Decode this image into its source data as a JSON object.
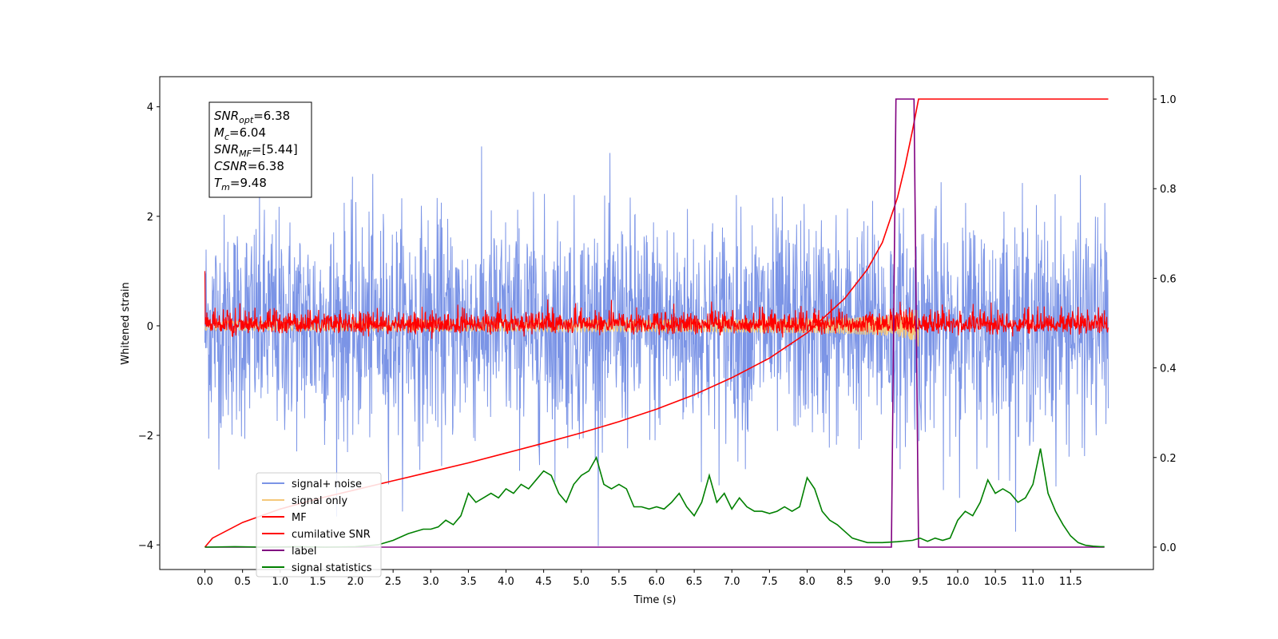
{
  "chart_data": {
    "type": "line",
    "title": "",
    "xlabel": "Time (s)",
    "ylabel": "Whitened strain",
    "y2label": "",
    "xlim": [
      -0.6,
      12.6
    ],
    "ylim": [
      -4.45,
      4.55
    ],
    "y2lim": [
      -0.05,
      1.05
    ],
    "x_ticks": [
      0.0,
      0.5,
      1.0,
      1.5,
      2.0,
      2.5,
      3.0,
      3.5,
      4.0,
      4.5,
      5.0,
      5.5,
      6.0,
      6.5,
      7.0,
      7.5,
      8.0,
      8.5,
      9.0,
      9.5,
      10.0,
      10.5,
      11.0,
      11.5
    ],
    "x_tick_labels": [
      "0.0",
      "0.5",
      "1.0",
      "1.5",
      "2.0",
      "2.5",
      "3.0",
      "3.5",
      "4.0",
      "4.5",
      "5.0",
      "5.5",
      "6.0",
      "6.5",
      "7.0",
      "7.5",
      "8.0",
      "8.5",
      "9.0",
      "9.5",
      "10.0",
      "10.5",
      "11.0",
      "11.5"
    ],
    "y_ticks": [
      -4,
      -2,
      0,
      2,
      4
    ],
    "y_tick_labels": [
      "−4",
      "−2",
      "0",
      "2",
      "4"
    ],
    "y2_ticks": [
      0.0,
      0.2,
      0.4,
      0.6,
      0.8,
      1.0
    ],
    "y2_tick_labels": [
      "0.0",
      "0.2",
      "0.4",
      "0.6",
      "0.8",
      "1.0"
    ],
    "grid": false,
    "legend_position": "lower-left",
    "annotation_box": [
      {
        "name": "SNR",
        "sub": "opt",
        "value": "=6.38"
      },
      {
        "name": "M",
        "sub": "c",
        "value": "=6.04"
      },
      {
        "name": "SNR",
        "sub": "MF",
        "value": "=[5.44]"
      },
      {
        "name": "CSNR",
        "sub": "",
        "value": "=6.38"
      },
      {
        "name": "T",
        "sub": "m",
        "value": "=9.48"
      }
    ],
    "series": [
      {
        "name": "signal+ noise",
        "color": "#7b94e6",
        "axis": "left",
        "kind": "noise",
        "x_range": [
          0.0,
          12.0
        ],
        "mean": 0.0,
        "std": 1.0,
        "min": -4.05,
        "max": 4.1
      },
      {
        "name": "signal only",
        "color": "#f5c87a",
        "axis": "left",
        "kind": "chirp",
        "x_range": [
          0.0,
          9.5
        ],
        "peak_time": 9.48,
        "peak_amplitude": 0.4
      },
      {
        "name": "MF",
        "color": "#ff0000",
        "axis": "left",
        "kind": "noise",
        "x_range": [
          0.0,
          12.0
        ],
        "mean": 0.0,
        "std": 0.17,
        "min": -0.25,
        "max": 1.0
      },
      {
        "name": "cumilative SNR",
        "color": "#ff0000",
        "axis": "right",
        "kind": "curve",
        "x": [
          0.0,
          0.1,
          0.5,
          1.0,
          1.5,
          2.0,
          2.5,
          3.0,
          3.5,
          4.0,
          4.5,
          5.0,
          5.5,
          6.0,
          6.5,
          7.0,
          7.5,
          8.0,
          8.5,
          8.8,
          9.0,
          9.2,
          9.3,
          9.4,
          9.48,
          12.0
        ],
        "y": [
          0.0,
          0.02,
          0.055,
          0.085,
          0.108,
          0.128,
          0.148,
          0.168,
          0.188,
          0.21,
          0.232,
          0.255,
          0.28,
          0.308,
          0.34,
          0.378,
          0.422,
          0.478,
          0.555,
          0.62,
          0.68,
          0.78,
          0.85,
          0.93,
          1.0,
          1.0
        ]
      },
      {
        "name": "label",
        "color": "#800080",
        "axis": "right",
        "kind": "step",
        "x": [
          0.0,
          9.12,
          9.18,
          9.42,
          9.48,
          11.95
        ],
        "y": [
          0.0,
          0.0,
          1.0,
          1.0,
          0.0,
          0.0
        ]
      },
      {
        "name": "signal statistics",
        "color": "#008000",
        "axis": "right",
        "kind": "curve",
        "x": [
          0.0,
          0.4,
          0.8,
          1.2,
          1.6,
          2.0,
          2.3,
          2.5,
          2.7,
          2.9,
          3.0,
          3.1,
          3.2,
          3.3,
          3.4,
          3.5,
          3.6,
          3.7,
          3.8,
          3.9,
          4.0,
          4.1,
          4.2,
          4.3,
          4.4,
          4.5,
          4.6,
          4.7,
          4.8,
          4.9,
          5.0,
          5.1,
          5.2,
          5.3,
          5.4,
          5.5,
          5.6,
          5.7,
          5.8,
          5.9,
          6.0,
          6.1,
          6.2,
          6.3,
          6.4,
          6.5,
          6.6,
          6.7,
          6.8,
          6.9,
          7.0,
          7.1,
          7.2,
          7.3,
          7.4,
          7.5,
          7.6,
          7.7,
          7.8,
          7.9,
          8.0,
          8.1,
          8.2,
          8.3,
          8.4,
          8.5,
          8.6,
          8.7,
          8.8,
          9.0,
          9.2,
          9.4,
          9.5,
          9.6,
          9.7,
          9.8,
          9.9,
          10.0,
          10.1,
          10.2,
          10.3,
          10.4,
          10.5,
          10.6,
          10.7,
          10.8,
          10.9,
          11.0,
          11.1,
          11.2,
          11.3,
          11.4,
          11.5,
          11.6,
          11.7,
          11.8,
          11.9,
          11.95
        ],
        "y": [
          0.0,
          0.001,
          0.0,
          0.001,
          0.0,
          0.001,
          0.005,
          0.015,
          0.03,
          0.04,
          0.04,
          0.045,
          0.06,
          0.05,
          0.07,
          0.12,
          0.1,
          0.11,
          0.12,
          0.11,
          0.13,
          0.12,
          0.14,
          0.13,
          0.15,
          0.17,
          0.16,
          0.12,
          0.1,
          0.14,
          0.16,
          0.17,
          0.2,
          0.14,
          0.13,
          0.14,
          0.13,
          0.09,
          0.09,
          0.085,
          0.09,
          0.085,
          0.1,
          0.12,
          0.09,
          0.07,
          0.1,
          0.16,
          0.1,
          0.12,
          0.085,
          0.11,
          0.09,
          0.08,
          0.08,
          0.075,
          0.08,
          0.09,
          0.08,
          0.09,
          0.155,
          0.13,
          0.08,
          0.06,
          0.05,
          0.035,
          0.02,
          0.015,
          0.01,
          0.01,
          0.012,
          0.015,
          0.02,
          0.013,
          0.02,
          0.015,
          0.02,
          0.06,
          0.08,
          0.07,
          0.1,
          0.15,
          0.12,
          0.13,
          0.12,
          0.1,
          0.11,
          0.14,
          0.22,
          0.12,
          0.08,
          0.05,
          0.025,
          0.01,
          0.004,
          0.002,
          0.001,
          0.001
        ]
      }
    ]
  }
}
